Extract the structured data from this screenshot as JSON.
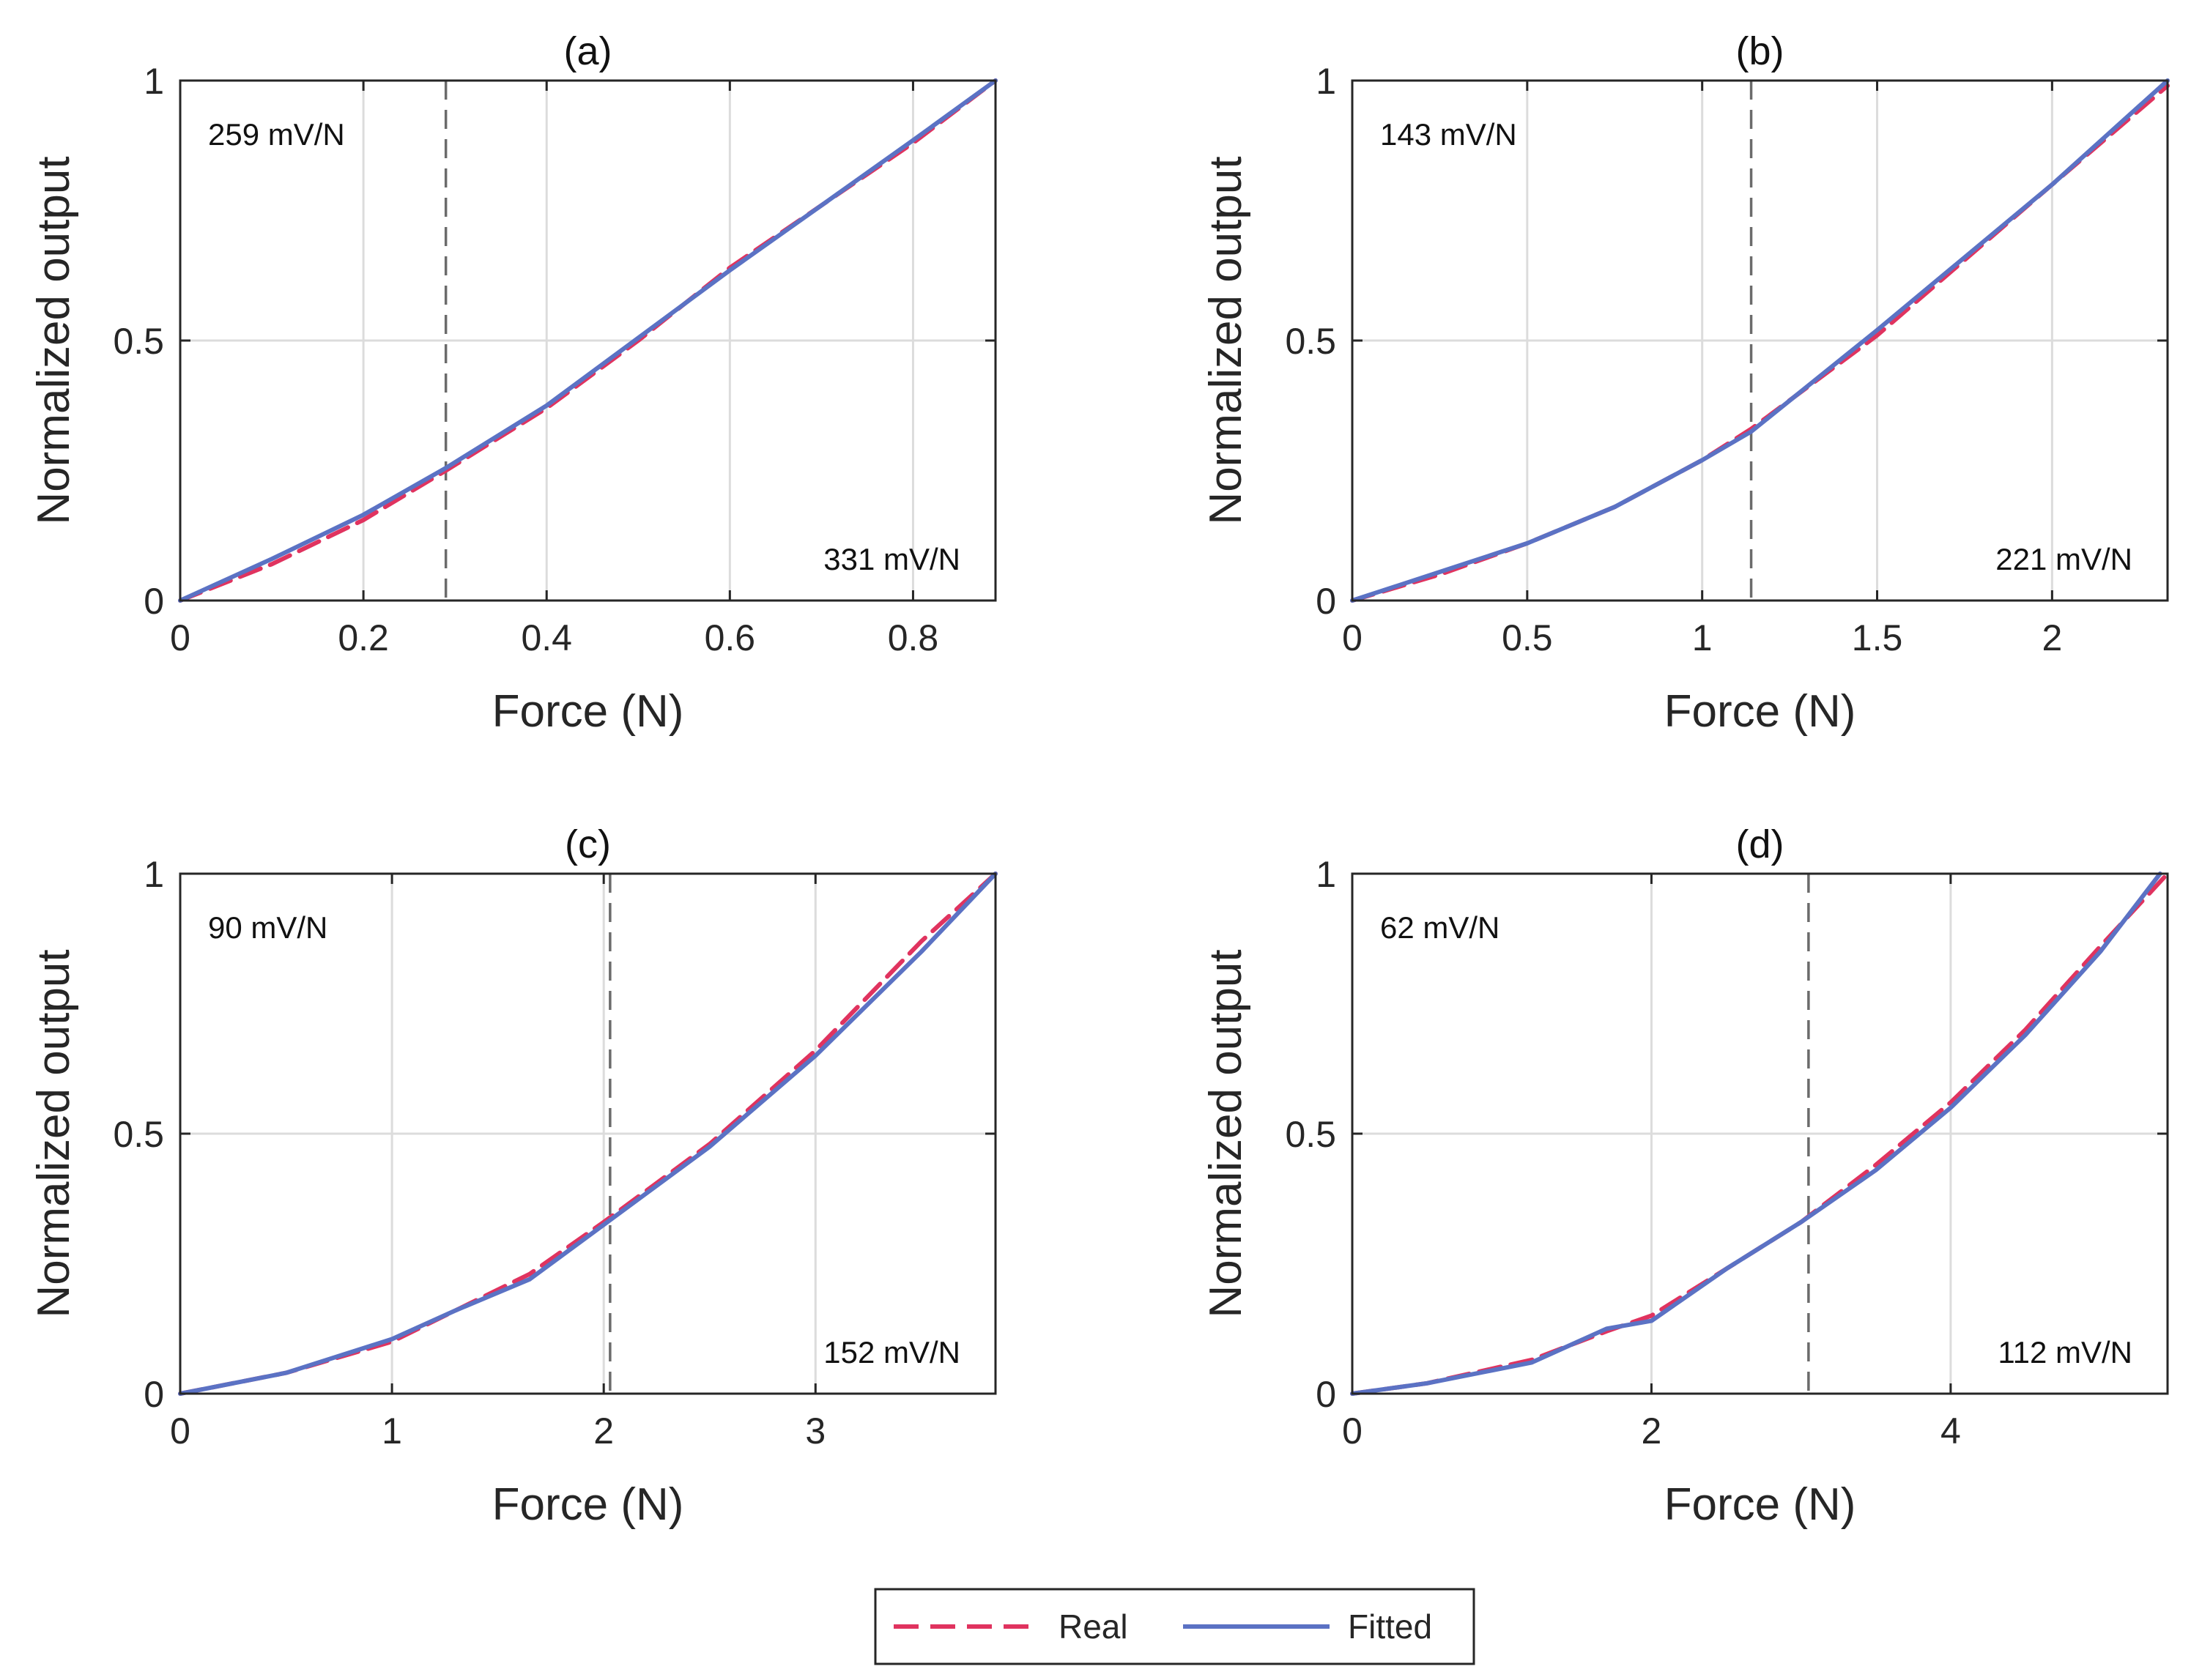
{
  "legend": {
    "items": [
      {
        "label": "Real",
        "color": "#e0335f",
        "style": "dashed"
      },
      {
        "label": "Fitted",
        "color": "#5b72c4",
        "style": "solid"
      }
    ]
  },
  "chart_data": [
    {
      "type": "line",
      "title": "(a)",
      "xlabel": "Force (N)",
      "ylabel": "Normalized output",
      "xlim": [
        0,
        0.89
      ],
      "ylim": [
        0,
        1
      ],
      "xticks": [
        0,
        0.2,
        0.4,
        0.6,
        0.8
      ],
      "xtick_labels": [
        "0",
        "0.2",
        "0.4",
        "0.6",
        "0.8"
      ],
      "yticks": [
        0,
        0.5,
        1
      ],
      "ytick_labels": [
        "0",
        "0.5",
        "1"
      ],
      "divider_x": 0.29,
      "annotations": {
        "upper_left": "259 mV/N",
        "lower_right": "331 mV/N"
      },
      "series": [
        {
          "name": "Real",
          "x": [
            0,
            0.1,
            0.2,
            0.29,
            0.4,
            0.5,
            0.6,
            0.7,
            0.8,
            0.89
          ],
          "y": [
            0,
            0.07,
            0.155,
            0.25,
            0.37,
            0.5,
            0.64,
            0.76,
            0.88,
            1
          ]
        },
        {
          "name": "Fitted",
          "x": [
            0,
            0.1,
            0.2,
            0.29,
            0.4,
            0.5,
            0.6,
            0.7,
            0.8,
            0.89
          ],
          "y": [
            0,
            0.08,
            0.165,
            0.255,
            0.375,
            0.505,
            0.635,
            0.76,
            0.885,
            1
          ]
        }
      ]
    },
    {
      "type": "line",
      "title": "(b)",
      "xlabel": "Force (N)",
      "ylabel": "Normalized output",
      "xlim": [
        0,
        2.33
      ],
      "ylim": [
        0,
        1
      ],
      "xticks": [
        0,
        0.5,
        1,
        1.5,
        2
      ],
      "xtick_labels": [
        "0",
        "0.5",
        "1",
        "1.5",
        "2"
      ],
      "yticks": [
        0,
        0.5,
        1
      ],
      "ytick_labels": [
        "0",
        "0.5",
        "1"
      ],
      "divider_x": 1.14,
      "annotations": {
        "upper_left": "143 mV/N",
        "lower_right": "221 mV/N"
      },
      "series": [
        {
          "name": "Real",
          "x": [
            0,
            0.25,
            0.5,
            0.75,
            1.0,
            1.14,
            1.5,
            2.0,
            2.33
          ],
          "y": [
            0,
            0.05,
            0.11,
            0.18,
            0.27,
            0.33,
            0.51,
            0.8,
            0.99
          ]
        },
        {
          "name": "Fitted",
          "x": [
            0,
            0.25,
            0.5,
            0.75,
            1.0,
            1.14,
            1.5,
            2.0,
            2.33
          ],
          "y": [
            0,
            0.055,
            0.11,
            0.18,
            0.27,
            0.325,
            0.52,
            0.8,
            1
          ]
        }
      ]
    },
    {
      "type": "line",
      "title": "(c)",
      "xlabel": "Force (N)",
      "ylabel": "Normalized output",
      "xlim": [
        0,
        3.85
      ],
      "ylim": [
        0,
        1
      ],
      "xticks": [
        0,
        1,
        2,
        3
      ],
      "xtick_labels": [
        "0",
        "1",
        "2",
        "3"
      ],
      "yticks": [
        0,
        0.5,
        1
      ],
      "ytick_labels": [
        "0",
        "0.5",
        "1"
      ],
      "divider_x": 2.03,
      "annotations": {
        "upper_left": "90 mV/N",
        "lower_right": "152 mV/N"
      },
      "series": [
        {
          "name": "Real",
          "x": [
            0,
            0.5,
            1.0,
            1.3,
            1.65,
            2.0,
            2.5,
            3.0,
            3.5,
            3.85
          ],
          "y": [
            0,
            0.04,
            0.1,
            0.16,
            0.23,
            0.33,
            0.48,
            0.66,
            0.87,
            1
          ]
        },
        {
          "name": "Fitted",
          "x": [
            0,
            0.5,
            1.0,
            1.3,
            1.65,
            2.0,
            2.5,
            3.0,
            3.5,
            3.85
          ],
          "y": [
            0,
            0.04,
            0.105,
            0.16,
            0.22,
            0.325,
            0.475,
            0.65,
            0.85,
            1
          ]
        }
      ]
    },
    {
      "type": "line",
      "title": "(d)",
      "xlabel": "Force (N)",
      "ylabel": "Normalized output",
      "xlim": [
        0,
        5.45
      ],
      "ylim": [
        0,
        1
      ],
      "xticks": [
        0,
        2,
        4
      ],
      "xtick_labels": [
        "0",
        "2",
        "4"
      ],
      "yticks": [
        0,
        0.5,
        1
      ],
      "ytick_labels": [
        "0",
        "0.5",
        "1"
      ],
      "divider_x": 3.05,
      "annotations": {
        "upper_left": "62 mV/N",
        "lower_right": "112 mV/N"
      },
      "series": [
        {
          "name": "Real",
          "x": [
            0,
            0.5,
            1.2,
            1.7,
            2.0,
            2.5,
            3.0,
            3.5,
            4.0,
            4.5,
            5.0,
            5.45
          ],
          "y": [
            0,
            0.02,
            0.065,
            0.12,
            0.15,
            0.24,
            0.33,
            0.44,
            0.56,
            0.7,
            0.86,
            1
          ]
        },
        {
          "name": "Fitted",
          "x": [
            0,
            0.5,
            1.2,
            1.7,
            2.0,
            2.5,
            3.0,
            3.5,
            4.0,
            4.5,
            5.0,
            5.4
          ],
          "y": [
            0,
            0.02,
            0.06,
            0.125,
            0.14,
            0.24,
            0.33,
            0.43,
            0.55,
            0.69,
            0.85,
            1
          ]
        }
      ]
    }
  ]
}
